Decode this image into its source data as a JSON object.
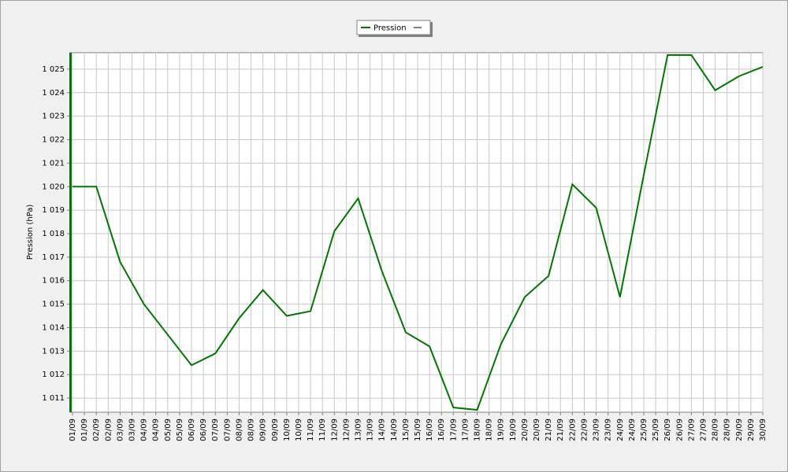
{
  "chart_data": {
    "type": "line",
    "y_label": "Pression (hPa)",
    "x": [
      0,
      1,
      2,
      3,
      4,
      5,
      6,
      7,
      8,
      9,
      10,
      11,
      12,
      13,
      14,
      15,
      16,
      17,
      18,
      19,
      20,
      21,
      22,
      23,
      24,
      25,
      26,
      27,
      28,
      29
    ],
    "xlim": [
      0,
      29
    ],
    "xticks": [
      {
        "value": 0,
        "label": "01/09"
      },
      {
        "value": 0.5,
        "label": "01/09"
      },
      {
        "value": 1,
        "label": "02/09"
      },
      {
        "value": 1.5,
        "label": "02/09"
      },
      {
        "value": 2,
        "label": "03/09"
      },
      {
        "value": 2.5,
        "label": "03/09"
      },
      {
        "value": 3,
        "label": "04/09"
      },
      {
        "value": 3.5,
        "label": "04/09"
      },
      {
        "value": 4,
        "label": "05/09"
      },
      {
        "value": 4.5,
        "label": "05/09"
      },
      {
        "value": 5,
        "label": "06/09"
      },
      {
        "value": 5.5,
        "label": "06/09"
      },
      {
        "value": 6,
        "label": "07/09"
      },
      {
        "value": 6.5,
        "label": "07/09"
      },
      {
        "value": 7,
        "label": "08/09"
      },
      {
        "value": 7.5,
        "label": "08/09"
      },
      {
        "value": 8,
        "label": "09/09"
      },
      {
        "value": 8.5,
        "label": "09/09"
      },
      {
        "value": 9,
        "label": "10/09"
      },
      {
        "value": 9.5,
        "label": "10/09"
      },
      {
        "value": 10,
        "label": "11/09"
      },
      {
        "value": 10.5,
        "label": "11/09"
      },
      {
        "value": 11,
        "label": "12/09"
      },
      {
        "value": 11.5,
        "label": "12/09"
      },
      {
        "value": 12,
        "label": "13/09"
      },
      {
        "value": 12.5,
        "label": "13/09"
      },
      {
        "value": 13,
        "label": "14/09"
      },
      {
        "value": 13.5,
        "label": "14/09"
      },
      {
        "value": 14,
        "label": "15/09"
      },
      {
        "value": 14.5,
        "label": "15/09"
      },
      {
        "value": 15,
        "label": "16/09"
      },
      {
        "value": 15.5,
        "label": "16/09"
      },
      {
        "value": 16,
        "label": "17/09"
      },
      {
        "value": 16.5,
        "label": "17/09"
      },
      {
        "value": 17,
        "label": "18/09"
      },
      {
        "value": 17.5,
        "label": "18/09"
      },
      {
        "value": 18,
        "label": "19/09"
      },
      {
        "value": 18.5,
        "label": "19/09"
      },
      {
        "value": 19,
        "label": "20/09"
      },
      {
        "value": 19.5,
        "label": "20/09"
      },
      {
        "value": 20,
        "label": "21/09"
      },
      {
        "value": 20.5,
        "label": "21/09"
      },
      {
        "value": 21,
        "label": "22/09"
      },
      {
        "value": 21.5,
        "label": "22/09"
      },
      {
        "value": 22,
        "label": "23/09"
      },
      {
        "value": 22.5,
        "label": "23/09"
      },
      {
        "value": 23,
        "label": "24/09"
      },
      {
        "value": 23.5,
        "label": "24/09"
      },
      {
        "value": 24,
        "label": "25/09"
      },
      {
        "value": 24.5,
        "label": "25/09"
      },
      {
        "value": 25,
        "label": "26/09"
      },
      {
        "value": 25.5,
        "label": "26/09"
      },
      {
        "value": 26,
        "label": "27/09"
      },
      {
        "value": 26.5,
        "label": "27/09"
      },
      {
        "value": 27,
        "label": "28/09"
      },
      {
        "value": 27.5,
        "label": "28/09"
      },
      {
        "value": 28,
        "label": "29/09"
      },
      {
        "value": 28.5,
        "label": "29/09"
      },
      {
        "value": 29,
        "label": "30/09"
      }
    ],
    "ylim": [
      1010.4,
      1025.7
    ],
    "yticks": [
      {
        "value": 1011,
        "label": "1 011"
      },
      {
        "value": 1012,
        "label": "1 012"
      },
      {
        "value": 1013,
        "label": "1 013"
      },
      {
        "value": 1014,
        "label": "1 014"
      },
      {
        "value": 1015,
        "label": "1 015"
      },
      {
        "value": 1016,
        "label": "1 016"
      },
      {
        "value": 1017,
        "label": "1 017"
      },
      {
        "value": 1018,
        "label": "1 018"
      },
      {
        "value": 1019,
        "label": "1 019"
      },
      {
        "value": 1020,
        "label": "1 020"
      },
      {
        "value": 1021,
        "label": "1 021"
      },
      {
        "value": 1022,
        "label": "1 022"
      },
      {
        "value": 1023,
        "label": "1 023"
      },
      {
        "value": 1024,
        "label": "1 024"
      },
      {
        "value": 1025,
        "label": "1 025"
      }
    ],
    "grid": true,
    "legend": "top",
    "series": [
      {
        "name": "Pression",
        "color": "#007800",
        "values": [
          1020,
          1020,
          1016.8,
          1015.0,
          1013.7,
          1012.4,
          1012.9,
          1014.4,
          1015.6,
          1014.5,
          1014.7,
          1018.1,
          1019.5,
          1016.4,
          1013.8,
          1013.2,
          1010.6,
          1010.5,
          1013.3,
          1015.3,
          1016.2,
          1020.1,
          1019.1,
          1015.3,
          1020.5,
          1025.6,
          1025.6,
          1024.1,
          1024.7,
          1025.1
        ]
      }
    ]
  }
}
